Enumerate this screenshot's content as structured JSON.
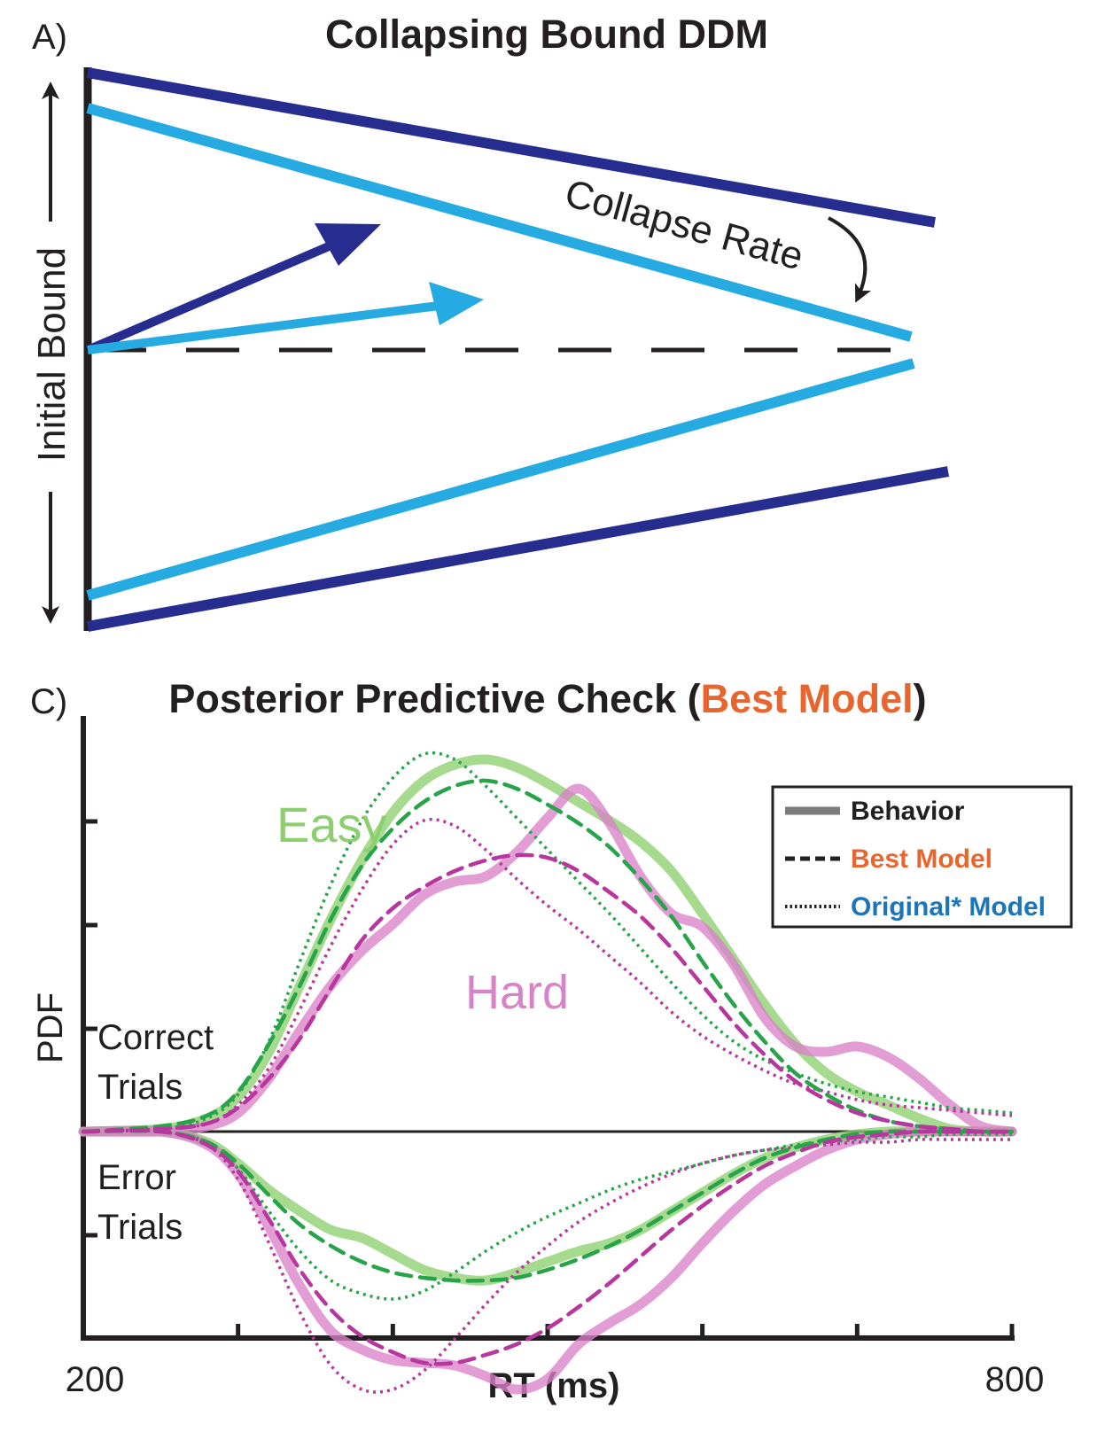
{
  "colors": {
    "dark_blue": "#262d8f",
    "light_blue": "#25aae1",
    "green": "#8dcf6e",
    "green_model": "#27a449",
    "magenta": "#d882c8",
    "magenta_model": "#b8379e",
    "orange": "#e8652e",
    "blue_text": "#1b75bb",
    "black": "#231f20",
    "legend_gray": "#7a7a7a"
  },
  "panel_a": {
    "label": "A)",
    "title": "Collapsing Bound DDM",
    "y_label": "Initial Bound",
    "collapse_label": "Collapse Rate"
  },
  "panel_c": {
    "label": "C)",
    "title_main": "Posterior Predictive Check (",
    "title_highlight": "Best Model",
    "title_end": ")",
    "y_label": "PDF",
    "x_label": "RT (ms)",
    "correct_line1": "Correct",
    "correct_line2": "Trials",
    "error_line1": "Error",
    "error_line2": "Trials",
    "easy_label": "Easy",
    "hard_label": "Hard",
    "legend": {
      "behavior": "Behavior",
      "best_model": "Best Model",
      "original_model": "Original* Model"
    }
  },
  "chart_data": {
    "type": "line",
    "title": "Posterior Predictive Check (Best Model)",
    "xlabel": "RT (ms)",
    "ylabel": "PDF",
    "xlim": [
      200,
      800
    ],
    "ylim": [
      -1,
      1.45
    ],
    "x_tick_labels": [
      "200",
      "800"
    ],
    "x_ticks": [
      200,
      300,
      400,
      500,
      600,
      700,
      800
    ],
    "x": [
      200,
      250,
      280,
      300,
      320,
      340,
      360,
      380,
      400,
      420,
      440,
      460,
      480,
      500,
      520,
      540,
      560,
      580,
      600,
      620,
      640,
      660,
      680,
      700,
      720,
      740,
      760,
      780,
      800
    ],
    "series": [
      {
        "name": "Easy Correct - Behavior",
        "condition": "Easy",
        "trial": "Correct",
        "kind": "Behavior",
        "values": [
          0,
          0.01,
          0.05,
          0.13,
          0.3,
          0.55,
          0.8,
          1.02,
          1.2,
          1.32,
          1.38,
          1.4,
          1.37,
          1.31,
          1.24,
          1.17,
          1.09,
          0.98,
          0.82,
          0.65,
          0.48,
          0.33,
          0.22,
          0.15,
          0.1,
          0.05,
          0.01,
          0,
          0
        ]
      },
      {
        "name": "Easy Correct - Best Model",
        "condition": "Easy",
        "trial": "Correct",
        "kind": "Best Model",
        "values": [
          0,
          0.02,
          0.06,
          0.15,
          0.33,
          0.55,
          0.8,
          1.0,
          1.14,
          1.24,
          1.3,
          1.32,
          1.29,
          1.23,
          1.16,
          1.07,
          0.95,
          0.81,
          0.64,
          0.48,
          0.34,
          0.22,
          0.14,
          0.08,
          0.04,
          0.02,
          0.01,
          0,
          0
        ]
      },
      {
        "name": "Easy Correct - Original* Model",
        "condition": "Easy",
        "trial": "Correct",
        "kind": "Original* Model",
        "values": [
          0,
          0.01,
          0.05,
          0.14,
          0.34,
          0.64,
          0.93,
          1.17,
          1.33,
          1.42,
          1.4,
          1.3,
          1.18,
          1.06,
          0.94,
          0.82,
          0.69,
          0.56,
          0.44,
          0.34,
          0.27,
          0.22,
          0.18,
          0.15,
          0.13,
          0.11,
          0.09,
          0.08,
          0.07
        ]
      },
      {
        "name": "Hard Correct - Behavior",
        "condition": "Hard",
        "trial": "Correct",
        "kind": "Behavior",
        "values": [
          0,
          0,
          0.02,
          0.07,
          0.2,
          0.38,
          0.55,
          0.68,
          0.78,
          0.89,
          0.94,
          0.96,
          1.05,
          1.18,
          1.29,
          1.16,
          0.96,
          0.82,
          0.77,
          0.63,
          0.43,
          0.32,
          0.3,
          0.32,
          0.28,
          0.2,
          0.1,
          0.02,
          0
        ]
      },
      {
        "name": "Hard Correct - Best Model",
        "condition": "Hard",
        "trial": "Correct",
        "kind": "Best Model",
        "values": [
          0,
          0.01,
          0.03,
          0.09,
          0.2,
          0.35,
          0.54,
          0.72,
          0.84,
          0.92,
          0.98,
          1.02,
          1.04,
          1.03,
          0.98,
          0.9,
          0.81,
          0.69,
          0.55,
          0.41,
          0.29,
          0.19,
          0.12,
          0.07,
          0.04,
          0.02,
          0.01,
          0,
          0
        ]
      },
      {
        "name": "Hard Correct - Original* Model",
        "condition": "Hard",
        "trial": "Correct",
        "kind": "Original* Model",
        "values": [
          0,
          0.01,
          0.03,
          0.1,
          0.24,
          0.46,
          0.7,
          0.91,
          1.08,
          1.17,
          1.15,
          1.06,
          0.95,
          0.85,
          0.76,
          0.66,
          0.56,
          0.45,
          0.36,
          0.29,
          0.23,
          0.18,
          0.15,
          0.12,
          0.1,
          0.09,
          0.08,
          0.07,
          0.06
        ]
      },
      {
        "name": "Easy Error - Behavior",
        "condition": "Easy",
        "trial": "Error",
        "kind": "Behavior",
        "values": [
          0,
          0,
          -0.04,
          -0.12,
          -0.22,
          -0.3,
          -0.37,
          -0.4,
          -0.46,
          -0.52,
          -0.55,
          -0.56,
          -0.53,
          -0.49,
          -0.45,
          -0.42,
          -0.37,
          -0.3,
          -0.23,
          -0.16,
          -0.1,
          -0.06,
          -0.03,
          -0.01,
          0,
          0,
          0,
          0,
          0
        ]
      },
      {
        "name": "Easy Error - Best Model",
        "condition": "Easy",
        "trial": "Error",
        "kind": "Best Model",
        "values": [
          0,
          0,
          -0.04,
          -0.12,
          -0.24,
          -0.35,
          -0.43,
          -0.49,
          -0.53,
          -0.55,
          -0.56,
          -0.56,
          -0.55,
          -0.52,
          -0.48,
          -0.43,
          -0.37,
          -0.3,
          -0.23,
          -0.16,
          -0.1,
          -0.06,
          -0.03,
          -0.01,
          0,
          0,
          0,
          0,
          0
        ]
      },
      {
        "name": "Easy Error - Original* Model",
        "condition": "Easy",
        "trial": "Error",
        "kind": "Original* Model",
        "values": [
          0,
          0,
          -0.04,
          -0.14,
          -0.3,
          -0.45,
          -0.56,
          -0.61,
          -0.63,
          -0.6,
          -0.53,
          -0.45,
          -0.38,
          -0.32,
          -0.27,
          -0.22,
          -0.18,
          -0.15,
          -0.12,
          -0.09,
          -0.07,
          -0.05,
          -0.04,
          -0.03,
          -0.02,
          -0.02,
          -0.01,
          -0.01,
          -0.01
        ]
      },
      {
        "name": "Hard Error - Behavior",
        "condition": "Hard",
        "trial": "Error",
        "kind": "Behavior",
        "values": [
          0,
          0,
          -0.05,
          -0.16,
          -0.36,
          -0.58,
          -0.75,
          -0.82,
          -0.86,
          -0.87,
          -0.88,
          -0.92,
          -0.97,
          -0.93,
          -0.8,
          -0.72,
          -0.65,
          -0.55,
          -0.42,
          -0.3,
          -0.2,
          -0.13,
          -0.07,
          -0.03,
          -0.01,
          0,
          0,
          0,
          0
        ]
      },
      {
        "name": "Hard Error - Best Model",
        "condition": "Hard",
        "trial": "Error",
        "kind": "Best Model",
        "values": [
          0,
          0,
          -0.05,
          -0.15,
          -0.33,
          -0.52,
          -0.67,
          -0.77,
          -0.83,
          -0.87,
          -0.87,
          -0.84,
          -0.8,
          -0.74,
          -0.66,
          -0.57,
          -0.47,
          -0.37,
          -0.28,
          -0.2,
          -0.13,
          -0.08,
          -0.04,
          -0.02,
          -0.01,
          0,
          0,
          0,
          0
        ]
      },
      {
        "name": "Hard Error - Original* Model",
        "condition": "Hard",
        "trial": "Error",
        "kind": "Original* Model",
        "values": [
          0,
          0,
          -0.05,
          -0.18,
          -0.42,
          -0.68,
          -0.88,
          -0.97,
          -0.97,
          -0.9,
          -0.78,
          -0.65,
          -0.53,
          -0.43,
          -0.34,
          -0.27,
          -0.21,
          -0.16,
          -0.12,
          -0.09,
          -0.07,
          -0.06,
          -0.05,
          -0.04,
          -0.04,
          -0.03,
          -0.03,
          -0.03,
          -0.03
        ]
      }
    ],
    "legend": [
      "Behavior",
      "Best Model",
      "Original* Model"
    ]
  }
}
